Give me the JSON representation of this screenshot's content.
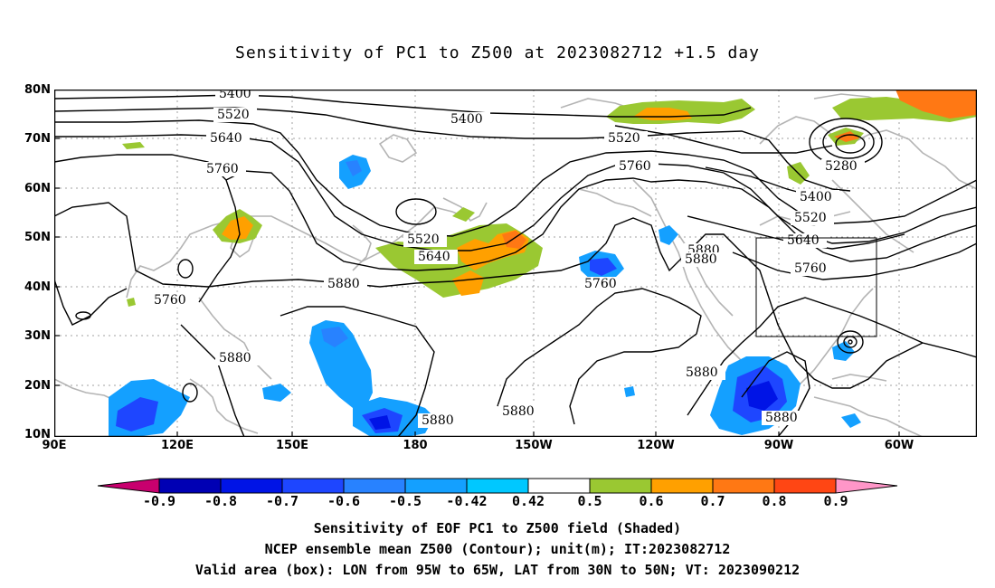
{
  "title": "Sensitivity of PC1 to Z500 at 2023082712 +1.5 day",
  "lat_ticks": [
    "80N",
    "70N",
    "60N",
    "50N",
    "40N",
    "30N",
    "20N",
    "10N"
  ],
  "lon_ticks": [
    "90E",
    "120E",
    "150E",
    "180",
    "150W",
    "120W",
    "90W",
    "60W"
  ],
  "contour_labels": [
    {
      "text": "5400"
    },
    {
      "text": "5520"
    },
    {
      "text": "5640"
    },
    {
      "text": "5760"
    },
    {
      "text": "5400"
    },
    {
      "text": "5520"
    },
    {
      "text": "5760"
    },
    {
      "text": "5280"
    },
    {
      "text": "5400"
    },
    {
      "text": "5520"
    },
    {
      "text": "5640"
    },
    {
      "text": "5760"
    },
    {
      "text": "5880"
    },
    {
      "text": "5880"
    },
    {
      "text": "5520"
    },
    {
      "text": "5640"
    },
    {
      "text": "5880"
    },
    {
      "text": "5760"
    },
    {
      "text": "5760"
    },
    {
      "text": "5880"
    },
    {
      "text": "5880"
    },
    {
      "text": "5880"
    },
    {
      "text": "5880"
    },
    {
      "text": "5880"
    }
  ],
  "colorbar": {
    "labels": [
      "-0.9",
      "-0.8",
      "-0.7",
      "-0.6",
      "-0.5",
      "-0.42",
      "0.42",
      "0.5",
      "0.6",
      "0.7",
      "0.8",
      "0.9"
    ],
    "colors": [
      "#c8006e",
      "#0000b4",
      "#0014e6",
      "#1e46ff",
      "#2882ff",
      "#14a0ff",
      "#00c8ff",
      "#ffffff",
      "#9ac832",
      "#ffa000",
      "#ff7814",
      "#ff4614",
      "#ff0000",
      "#ff96c8"
    ]
  },
  "captions": [
    "Sensitivity of EOF PC1 to Z500 field (Shaded)",
    "NCEP ensemble mean Z500 (Contour); unit(m); IT:2023082712",
    "Valid area (box): LON from 95W to 65W, LAT from 30N to 50N; VT: 2023090212"
  ]
}
